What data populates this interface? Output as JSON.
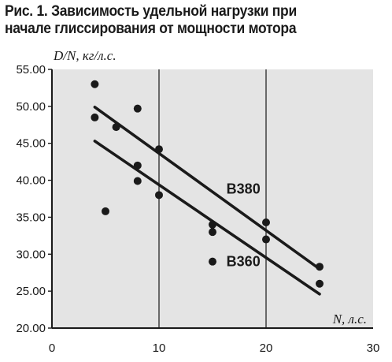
{
  "figure": {
    "title_line1": "Рис. 1. Зависимость удельной нагрузки при",
    "title_line2": "начале глиссирования от мощности мотора"
  },
  "chart_data": {
    "type": "scatter",
    "ylabel": "D/N, кг/л.с.",
    "xlabel": "N, л.с.",
    "xlim": [
      0,
      30
    ],
    "ylim": [
      20,
      55
    ],
    "x_ticks": [
      "0",
      "10",
      "20",
      "30"
    ],
    "y_ticks": [
      "20.00",
      "25.00",
      "30.00",
      "35.00",
      "40.00",
      "45.00",
      "50.00",
      "55.00"
    ],
    "grid": "vertical",
    "background_color": "#e4e4e4",
    "series": [
      {
        "type": "scatter",
        "points": [
          {
            "x": 4,
            "y": 53.0
          },
          {
            "x": 4,
            "y": 48.5
          },
          {
            "x": 5,
            "y": 35.8
          },
          {
            "x": 6,
            "y": 47.2
          },
          {
            "x": 8,
            "y": 49.7
          },
          {
            "x": 8,
            "y": 42.0
          },
          {
            "x": 8,
            "y": 39.9
          },
          {
            "x": 10,
            "y": 44.2
          },
          {
            "x": 10,
            "y": 38.0
          },
          {
            "x": 15,
            "y": 34.0
          },
          {
            "x": 15,
            "y": 33.0
          },
          {
            "x": 15,
            "y": 29.0
          },
          {
            "x": 20,
            "y": 34.3
          },
          {
            "x": 20,
            "y": 32.0
          },
          {
            "x": 25,
            "y": 28.3
          },
          {
            "x": 25,
            "y": 26.0
          }
        ]
      },
      {
        "type": "line",
        "name": "B380",
        "points": [
          {
            "x": 4,
            "y": 49.9
          },
          {
            "x": 25,
            "y": 28.0
          }
        ]
      },
      {
        "type": "line",
        "name": "B360",
        "points": [
          {
            "x": 4,
            "y": 45.3
          },
          {
            "x": 25,
            "y": 24.6
          }
        ]
      }
    ]
  }
}
